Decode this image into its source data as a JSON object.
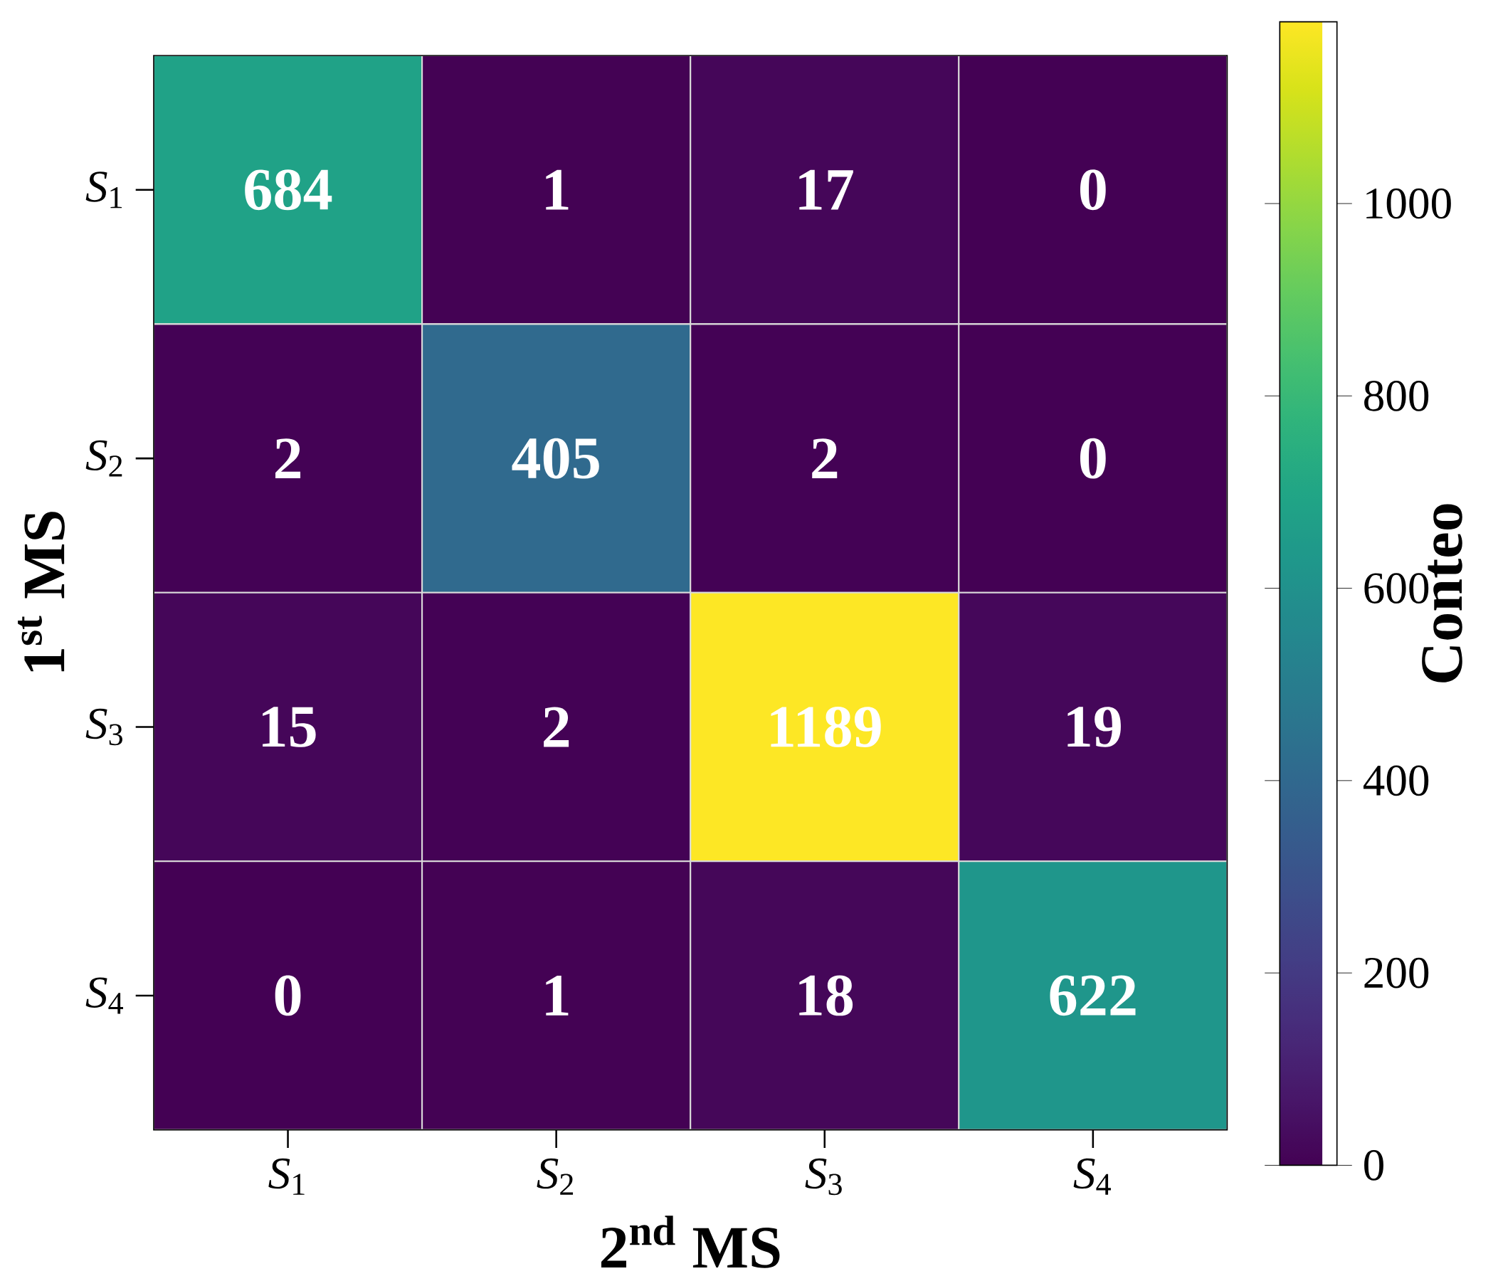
{
  "chart_data": {
    "type": "heatmap",
    "xlabel": "2$^{nd}$ MS",
    "ylabel": "1$^{st}$ MS",
    "clabel": "Conteo",
    "categories": [
      "*S*$_{1}$",
      "*S*$_{2}$",
      "*S*$_{3}$",
      "*S*$_{4}$"
    ],
    "y_categories": [
      "*S*$_{1}$",
      "*S*$_{2}$",
      "*S*$_{3}$",
      "*S*$_{4}$"
    ],
    "cells": [
      [
        684,
        1,
        17,
        0
      ],
      [
        2,
        405,
        2,
        0
      ],
      [
        15,
        2,
        1189,
        19
      ],
      [
        0,
        1,
        18,
        622
      ]
    ],
    "clim": [
      0,
      1189
    ],
    "cticks": [
      0,
      200,
      400,
      600,
      800,
      1000
    ],
    "data_labels": true
  }
}
